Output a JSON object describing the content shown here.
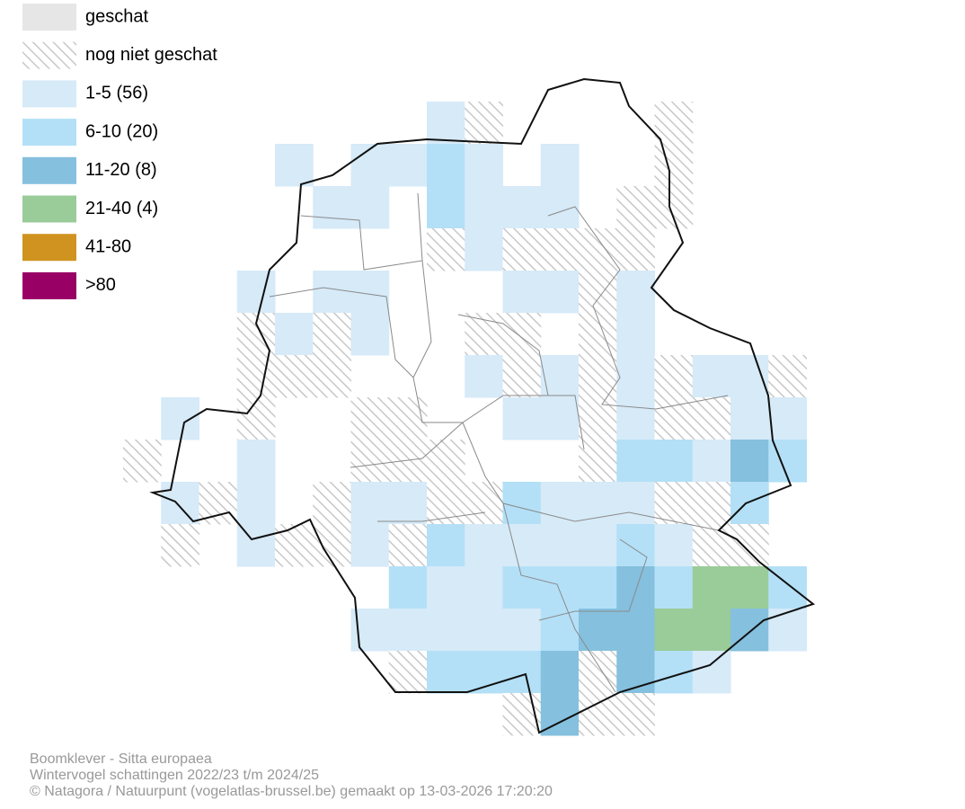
{
  "legend": [
    {
      "label": "geschat",
      "color": "#e6e6e6"
    },
    {
      "label": "nog niet geschat",
      "color": "hatch"
    },
    {
      "label": "1-5 (56)",
      "color": "#d6eaf8"
    },
    {
      "label": "6-10 (20)",
      "color": "#b3e0f7"
    },
    {
      "label": "11-20 (8)",
      "color": "#85c0de"
    },
    {
      "label": "21-40 (4)",
      "color": "#99cc99"
    },
    {
      "label": "41-80",
      "color": "#d09320"
    },
    {
      "label": ">80",
      "color": "#990066"
    }
  ],
  "footer": [
    "Boomklever - Sitta europaea",
    "Wintervogel schattingen 2022/23 t/m 2024/25",
    "© Natagora / Natuurpunt (vogelatlas-brussel.be) gemaakt op 13-03-2026 17:20:20"
  ]
}
